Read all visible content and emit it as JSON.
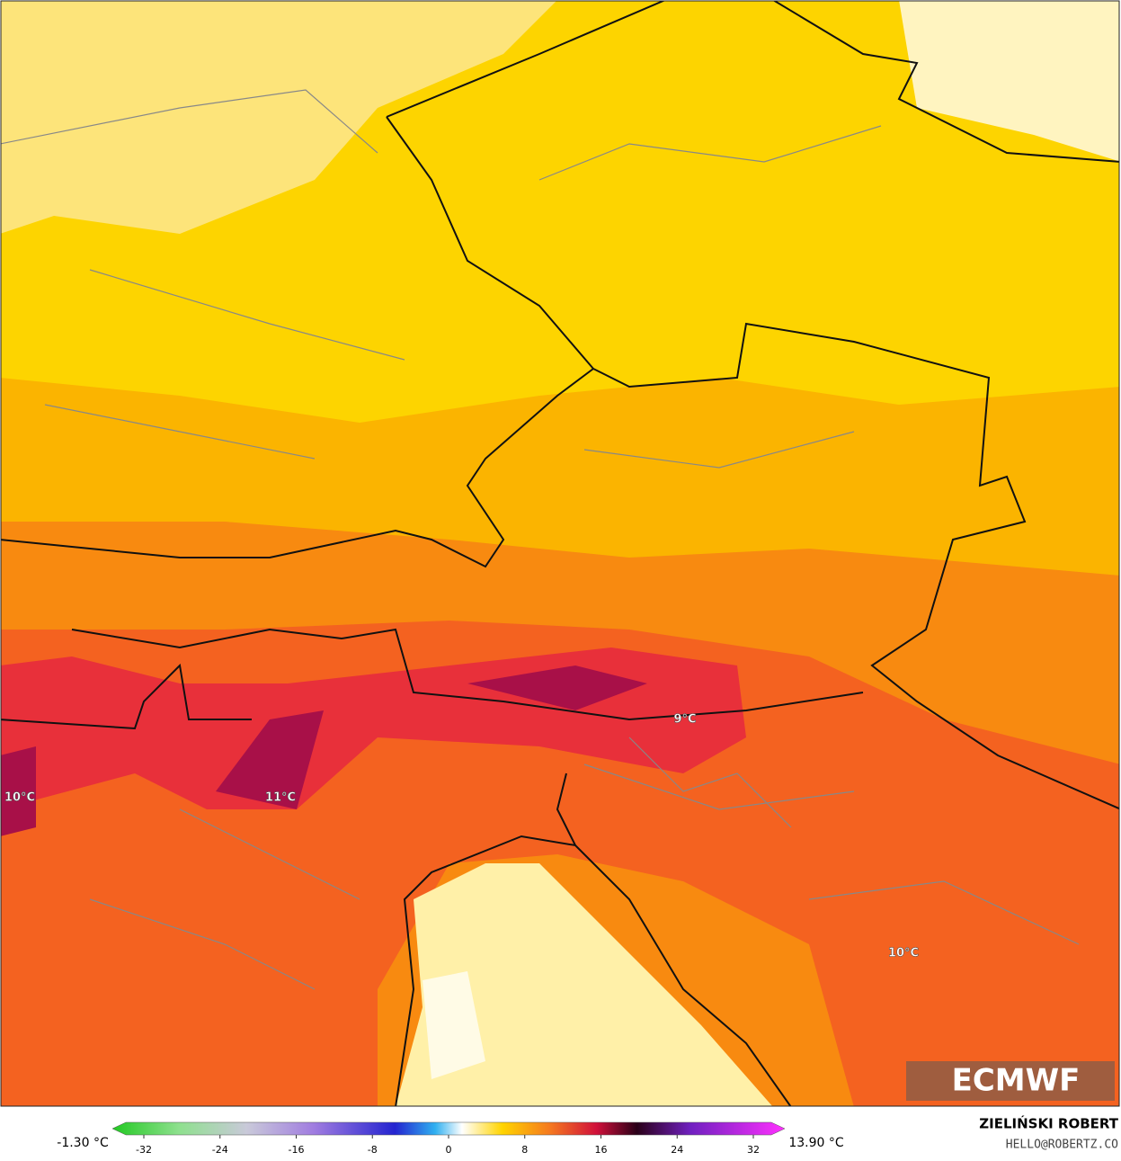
{
  "map": {
    "labels": [
      {
        "text": "10°C"
      },
      {
        "text": "11°C"
      },
      {
        "text": "9°C"
      },
      {
        "text": "10°C"
      }
    ],
    "logo": "ECMWF"
  },
  "colorbar": {
    "min_label": "-1.30 °C",
    "max_label": "13.90 °C",
    "ticks": [
      -32,
      -24,
      -16,
      -8,
      0,
      8,
      16,
      24,
      32
    ]
  },
  "credit": {
    "author": "ZIELIŃSKI ROBERT",
    "email": "HELLO@ROBERTZ.CO"
  }
}
